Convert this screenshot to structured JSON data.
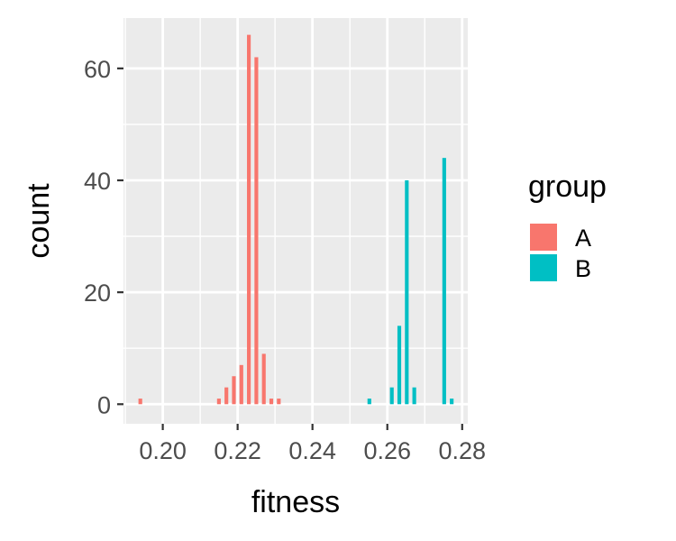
{
  "chart_data": {
    "type": "bar",
    "subtype": "histogram",
    "xlabel": "fitness",
    "ylabel": "count",
    "xlim": [
      0.1895,
      0.2815
    ],
    "ylim": [
      -3.5,
      69
    ],
    "x_ticks": [
      {
        "value": 0.2,
        "label": "0.20"
      },
      {
        "value": 0.22,
        "label": "0.22"
      },
      {
        "value": 0.24,
        "label": "0.24"
      },
      {
        "value": 0.26,
        "label": "0.26"
      },
      {
        "value": 0.28,
        "label": "0.28"
      }
    ],
    "y_ticks": [
      {
        "value": 0,
        "label": "0"
      },
      {
        "value": 20,
        "label": "20"
      },
      {
        "value": 40,
        "label": "40"
      },
      {
        "value": 60,
        "label": "60"
      }
    ],
    "grid": true,
    "background": "#ebebeb",
    "bin_width": 0.002,
    "bar_fill_fraction": 0.5,
    "legend": {
      "title": "group",
      "position": "right",
      "entries": [
        {
          "label": "A",
          "color": "#f8766d"
        },
        {
          "label": "B",
          "color": "#00bfc4"
        }
      ]
    },
    "series": [
      {
        "name": "A",
        "color": "#f8766d",
        "x": [
          0.194,
          0.215,
          0.217,
          0.219,
          0.221,
          0.223,
          0.225,
          0.227,
          0.229,
          0.231,
          0.233
        ],
        "values": [
          1,
          1,
          3,
          5,
          7,
          66,
          62,
          9,
          1,
          1,
          0
        ]
      },
      {
        "name": "B",
        "color": "#00bfc4",
        "x": [
          0.2552,
          0.2612,
          0.2632,
          0.2652,
          0.2672,
          0.2752,
          0.2772
        ],
        "values": [
          1,
          3,
          14,
          40,
          3,
          44,
          1
        ]
      }
    ]
  }
}
